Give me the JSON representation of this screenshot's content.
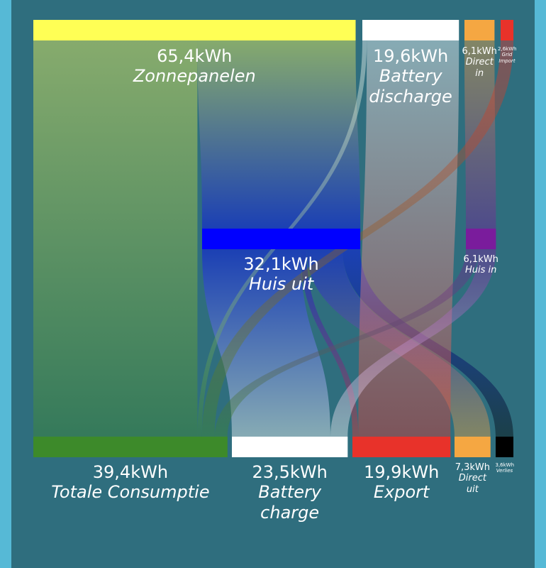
{
  "chart_data": {
    "type": "sankey",
    "nodes": [
      {
        "name": "Zonnepanelen",
        "value": 65.4,
        "value_label": "65,4kWh",
        "color": "#ffff55"
      },
      {
        "name": "Battery discharge",
        "value": 19.6,
        "value_label": "19,6kWh",
        "color": "#ffffff"
      },
      {
        "name": "Direct in",
        "value": 6.1,
        "value_label": "6,1kWh",
        "color": "#f5a742"
      },
      {
        "name": "Grid Import",
        "value": 2.6,
        "value_label": "2,6kWh",
        "color": "#e8322a"
      },
      {
        "name": "Huis uit",
        "value": 32.1,
        "value_label": "32,1kWh",
        "color": "#0000ff"
      },
      {
        "name": "Huis in",
        "value": 6.1,
        "value_label": "6,1kWh",
        "color": "#7a1c9c"
      },
      {
        "name": "Totale Consumptie",
        "value": 39.4,
        "value_label": "39,4kWh",
        "color": "#3d8a2a"
      },
      {
        "name": "Battery charge",
        "value": 23.5,
        "value_label": "23,5kWh",
        "color": "#ffffff"
      },
      {
        "name": "Export",
        "value": 19.9,
        "value_label": "19,9kWh",
        "color": "#e8322a"
      },
      {
        "name": "Direct uit",
        "value": 7.3,
        "value_label": "7,3kWh",
        "color": "#f5a742"
      },
      {
        "name": "Verlies",
        "value": 3.6,
        "value_label": "3,6kWh",
        "color": "#000000"
      }
    ],
    "links": [
      {
        "source": 0,
        "target": 6,
        "value": 33.3
      },
      {
        "source": 0,
        "target": 4,
        "value": 32.1
      },
      {
        "source": 4,
        "target": 7,
        "value": 20.0
      },
      {
        "source": 4,
        "target": 8,
        "value": 1.2
      },
      {
        "source": 4,
        "target": 9,
        "value": 7.3
      },
      {
        "source": 4,
        "target": 10,
        "value": 3.6
      },
      {
        "source": 1,
        "target": 6,
        "value": 0.9
      },
      {
        "source": 1,
        "target": 8,
        "value": 18.7
      },
      {
        "source": 2,
        "target": 5,
        "value": 6.1
      },
      {
        "source": 3,
        "target": 6,
        "value": 2.6
      },
      {
        "source": 5,
        "target": 6,
        "value": 2.6
      },
      {
        "source": 5,
        "target": 7,
        "value": 3.5
      }
    ]
  }
}
